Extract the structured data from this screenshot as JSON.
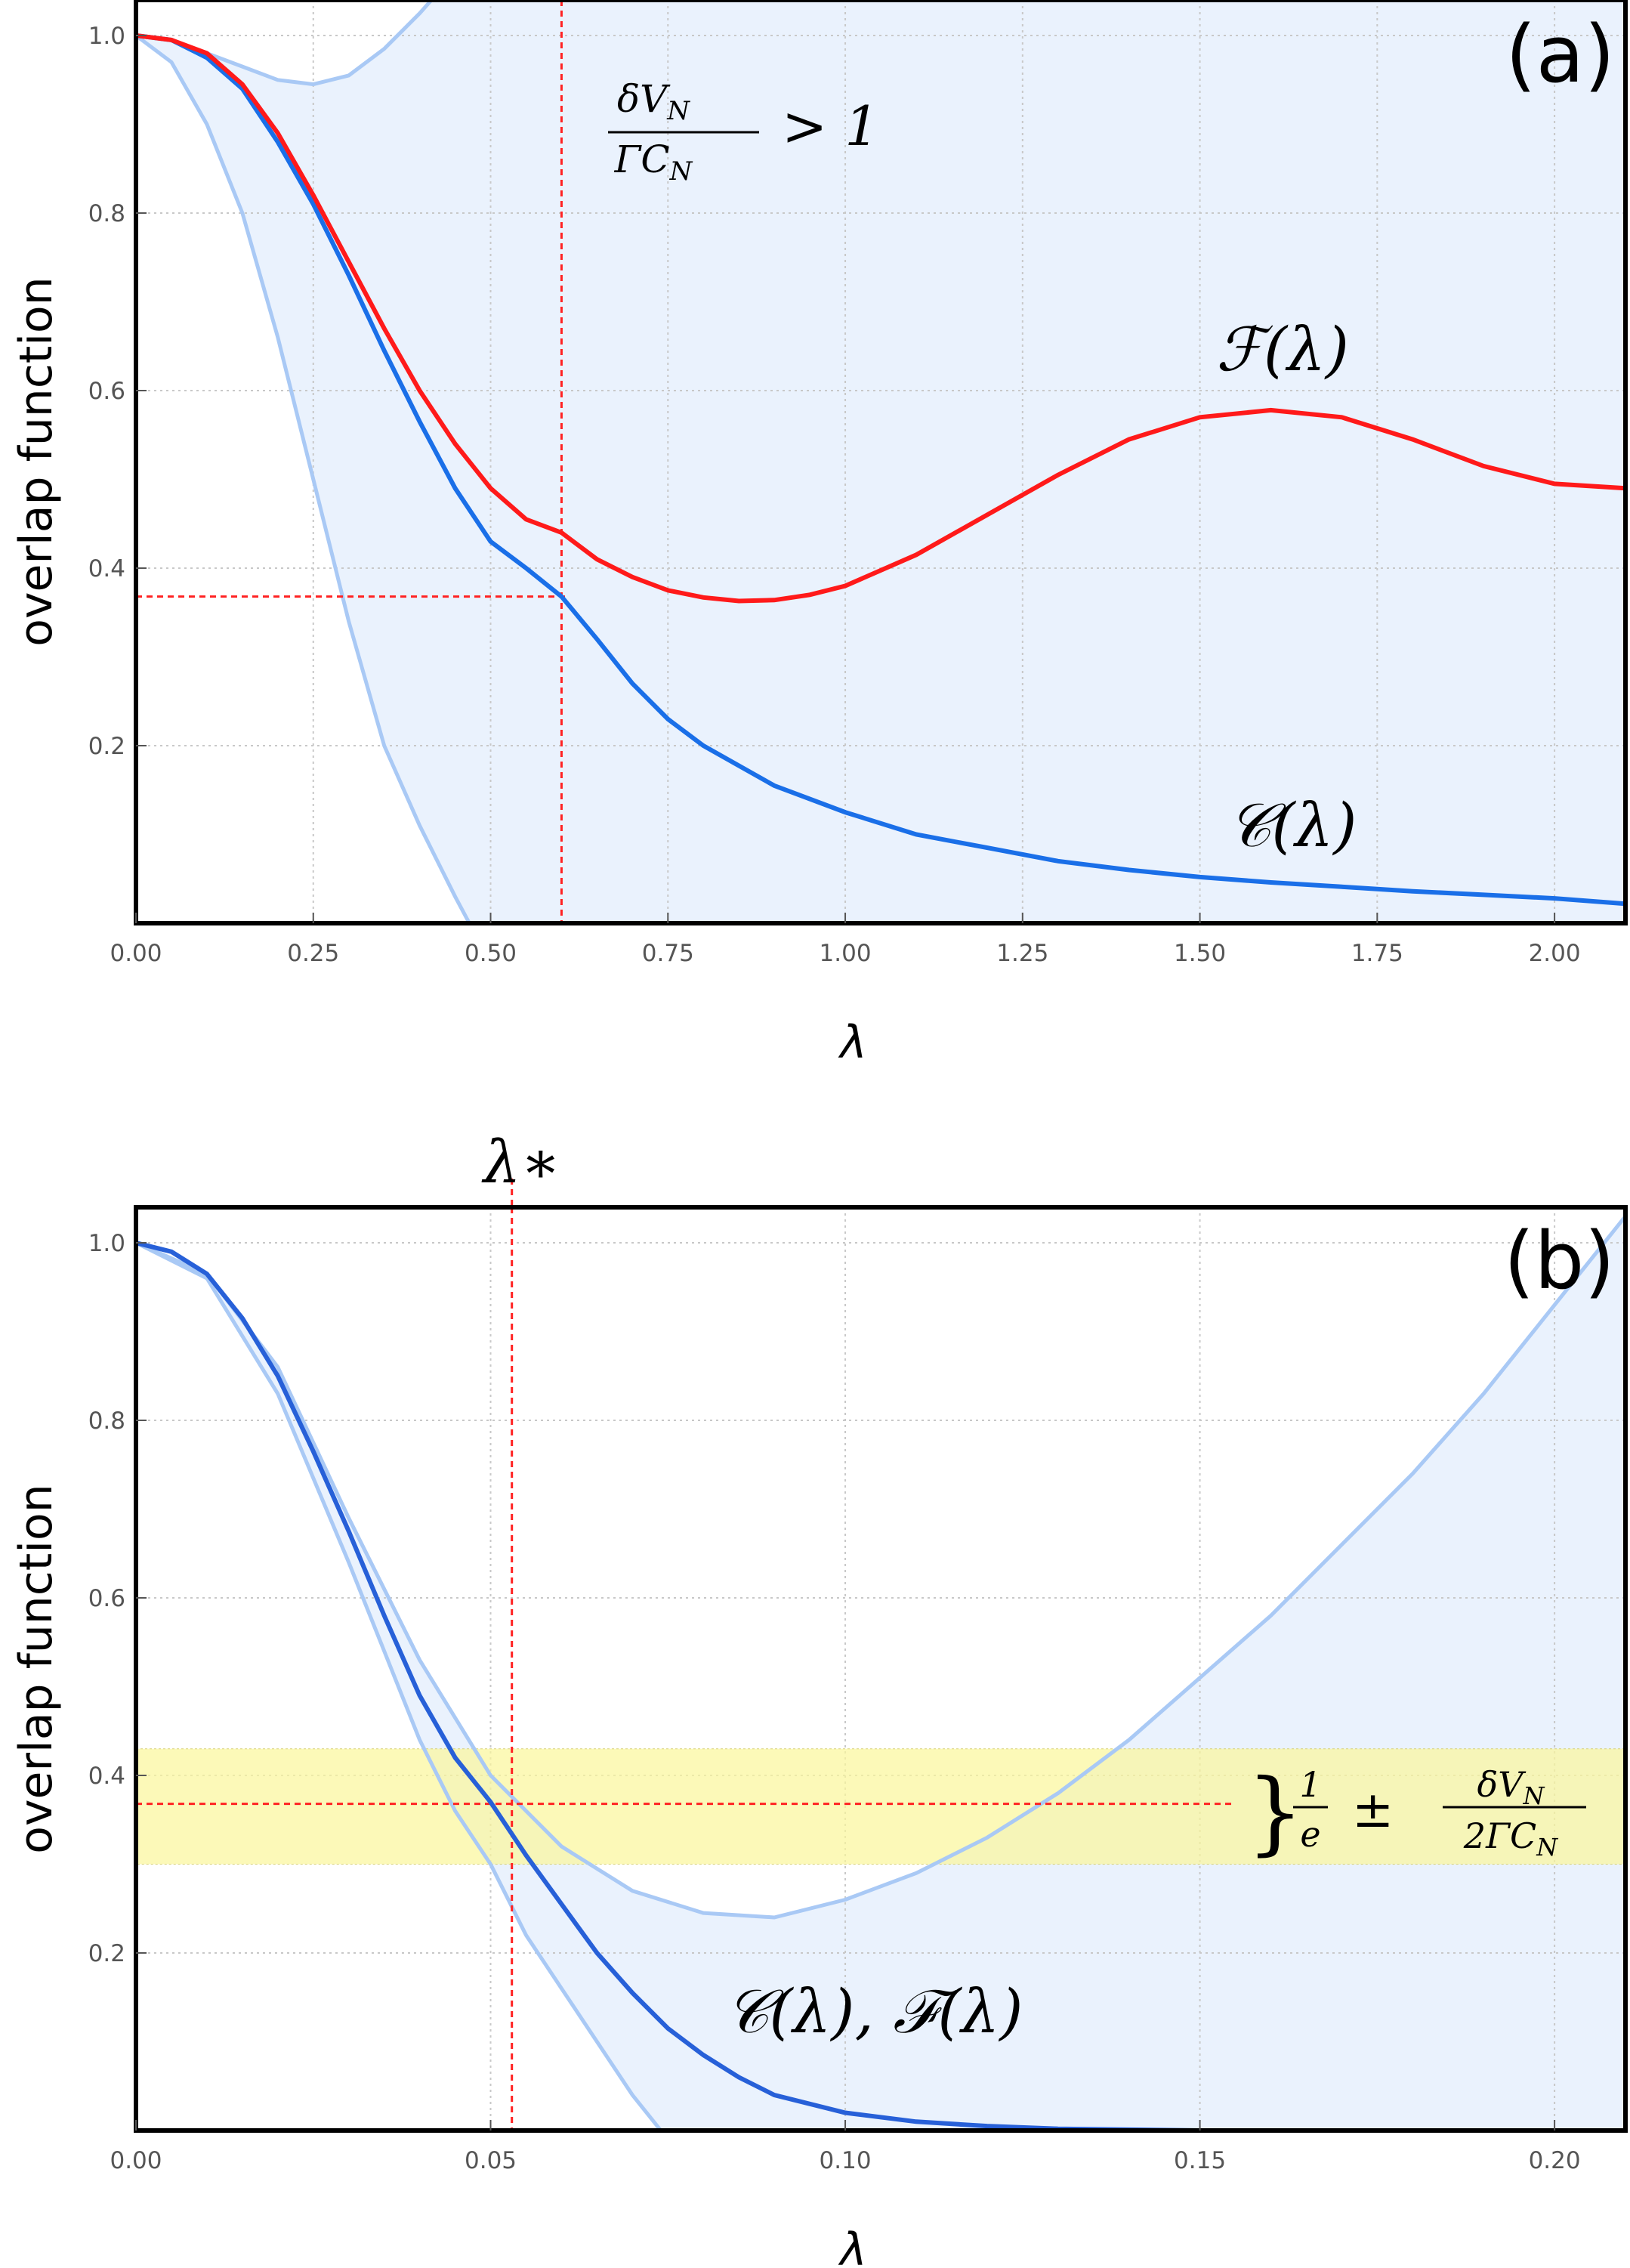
{
  "chart_data": [
    {
      "panel_label": "(a)",
      "type": "line",
      "ylabel": "overlap function",
      "xlabel": "λ",
      "xlim": [
        0,
        2.1
      ],
      "ylim": [
        0,
        1.04
      ],
      "x_ticks": [
        "0.00",
        "0.25",
        "0.50",
        "0.75",
        "1.00",
        "1.25",
        "1.50",
        "1.75",
        "2.00"
      ],
      "y_ticks": [
        "0.2",
        "0.4",
        "0.6",
        "0.8",
        "1.0"
      ],
      "grid": true,
      "annotations": {
        "condition_numerator": "δV",
        "condition_numerator_sub": "N",
        "condition_denominator": "ΓC",
        "condition_denominator_sub": "N",
        "condition_rhs": "> 1",
        "F_label": "ℱ(λ)",
        "C_label": "𝒞(λ)"
      },
      "markers": {
        "vline_x": 0.6,
        "hline_y": 0.368
      },
      "series": [
        {
          "name": "ℱ(λ)",
          "color": "#ff1a1a",
          "x": [
            0.0,
            0.05,
            0.1,
            0.15,
            0.2,
            0.25,
            0.3,
            0.35,
            0.4,
            0.45,
            0.5,
            0.55,
            0.6,
            0.65,
            0.7,
            0.75,
            0.8,
            0.85,
            0.9,
            0.95,
            1.0,
            1.1,
            1.2,
            1.3,
            1.4,
            1.5,
            1.6,
            1.7,
            1.8,
            1.9,
            2.0,
            2.1
          ],
          "values": [
            1.0,
            0.995,
            0.98,
            0.945,
            0.89,
            0.82,
            0.745,
            0.67,
            0.6,
            0.54,
            0.49,
            0.455,
            0.44,
            0.41,
            0.39,
            0.375,
            0.367,
            0.363,
            0.364,
            0.37,
            0.38,
            0.415,
            0.46,
            0.505,
            0.545,
            0.57,
            0.578,
            0.57,
            0.545,
            0.515,
            0.495,
            0.49
          ]
        },
        {
          "name": "𝒞(λ)",
          "color": "#1a6fe8",
          "x": [
            0.0,
            0.05,
            0.1,
            0.15,
            0.2,
            0.25,
            0.3,
            0.35,
            0.4,
            0.45,
            0.5,
            0.55,
            0.6,
            0.65,
            0.7,
            0.75,
            0.8,
            0.9,
            1.0,
            1.1,
            1.2,
            1.3,
            1.4,
            1.5,
            1.6,
            1.7,
            1.8,
            1.9,
            2.0,
            2.1
          ],
          "values": [
            1.0,
            0.995,
            0.975,
            0.94,
            0.88,
            0.81,
            0.73,
            0.645,
            0.565,
            0.49,
            0.43,
            0.4,
            0.368,
            0.32,
            0.27,
            0.23,
            0.2,
            0.155,
            0.125,
            0.1,
            0.085,
            0.07,
            0.06,
            0.052,
            0.046,
            0.041,
            0.036,
            0.032,
            0.028,
            0.022
          ]
        },
        {
          "name": "upper band",
          "color": "#a9c9f5",
          "x": [
            0.0,
            0.05,
            0.1,
            0.15,
            0.2,
            0.25,
            0.3,
            0.35,
            0.4,
            0.45,
            0.47
          ],
          "values": [
            1.0,
            0.995,
            0.98,
            0.965,
            0.95,
            0.945,
            0.955,
            0.985,
            1.025,
            1.07,
            1.09
          ]
        },
        {
          "name": "lower band",
          "color": "#a9c9f5",
          "x": [
            0.0,
            0.05,
            0.1,
            0.15,
            0.2,
            0.25,
            0.3,
            0.35,
            0.4,
            0.45,
            0.47
          ],
          "values": [
            1.0,
            0.97,
            0.9,
            0.8,
            0.66,
            0.5,
            0.34,
            0.2,
            0.11,
            0.03,
            0.0
          ]
        }
      ]
    },
    {
      "panel_label": "(b)",
      "type": "line",
      "ylabel": "overlap function",
      "xlabel": "λ",
      "xlim": [
        0,
        0.21
      ],
      "ylim": [
        0,
        1.04
      ],
      "x_ticks": [
        "0.00",
        "0.05",
        "0.10",
        "0.15",
        "0.20"
      ],
      "y_ticks": [
        "0.2",
        "0.4",
        "0.6",
        "0.8",
        "1.0"
      ],
      "grid": true,
      "annotations": {
        "lambda_star": "λ∗",
        "curves_label": "𝒞(λ), ℱ(λ)",
        "band_label_fraction_num": "1",
        "band_label_fraction_den": "e",
        "band_label_pm": "±",
        "band_label_num": "δV",
        "band_label_num_sub": "N",
        "band_label_den": "2ΓC",
        "band_label_den_sub": "N"
      },
      "markers": {
        "vline_x": 0.053,
        "hline_y": 0.368,
        "band": [
          0.3,
          0.43
        ]
      },
      "series": [
        {
          "name": "𝒞(λ), ℱ(λ)",
          "color": "#2760d8",
          "x": [
            0.0,
            0.005,
            0.01,
            0.015,
            0.02,
            0.025,
            0.03,
            0.035,
            0.04,
            0.045,
            0.05,
            0.055,
            0.06,
            0.065,
            0.07,
            0.075,
            0.08,
            0.085,
            0.09,
            0.1,
            0.11,
            0.12,
            0.13,
            0.15
          ],
          "values": [
            1.0,
            0.99,
            0.965,
            0.915,
            0.85,
            0.765,
            0.675,
            0.58,
            0.49,
            0.42,
            0.37,
            0.31,
            0.255,
            0.2,
            0.155,
            0.115,
            0.085,
            0.06,
            0.04,
            0.02,
            0.01,
            0.005,
            0.002,
            0.0
          ]
        },
        {
          "name": "upper band",
          "color": "#a9c9f5",
          "x": [
            0.0,
            0.01,
            0.02,
            0.03,
            0.04,
            0.05,
            0.06,
            0.07,
            0.08,
            0.09,
            0.1,
            0.11,
            0.12,
            0.13,
            0.14,
            0.15,
            0.16,
            0.17,
            0.18,
            0.19,
            0.2,
            0.21
          ],
          "values": [
            1.0,
            0.965,
            0.86,
            0.69,
            0.53,
            0.4,
            0.32,
            0.27,
            0.245,
            0.24,
            0.26,
            0.29,
            0.33,
            0.38,
            0.44,
            0.51,
            0.58,
            0.66,
            0.74,
            0.83,
            0.93,
            1.03
          ]
        },
        {
          "name": "lower band",
          "color": "#a9c9f5",
          "x": [
            0.0,
            0.01,
            0.02,
            0.03,
            0.035,
            0.04,
            0.045,
            0.05,
            0.055,
            0.06,
            0.065,
            0.07,
            0.074
          ],
          "values": [
            1.0,
            0.96,
            0.83,
            0.64,
            0.54,
            0.44,
            0.36,
            0.3,
            0.22,
            0.16,
            0.1,
            0.04,
            0.0
          ]
        }
      ]
    }
  ]
}
